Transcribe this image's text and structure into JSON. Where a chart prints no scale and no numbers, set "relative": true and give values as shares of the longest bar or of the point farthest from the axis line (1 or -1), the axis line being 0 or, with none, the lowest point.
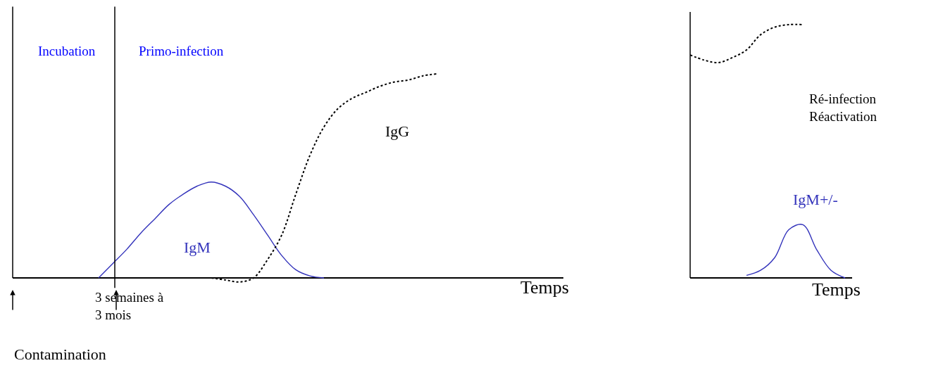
{
  "chart_data": [
    {
      "type": "line",
      "relative": true,
      "legend": false,
      "xlabel": "Temps",
      "categories": [
        null,
        null,
        null,
        null,
        null,
        null,
        null,
        null,
        null,
        null,
        null,
        null,
        null,
        null,
        null,
        null,
        null,
        null,
        null,
        null,
        null,
        null,
        null,
        null,
        null,
        null,
        null,
        null,
        null,
        null,
        null,
        null,
        null,
        null,
        null,
        null,
        null,
        null,
        null,
        null
      ],
      "series": [
        {
          "name": "IgM",
          "color": "#3333bb",
          "line_style": "solid",
          "values": [
            null,
            null,
            null,
            null,
            null,
            null,
            0,
            0.07,
            0.14,
            0.22,
            0.29,
            0.36,
            0.41,
            0.45,
            0.47,
            0.45,
            0.4,
            0.31,
            0.21,
            0.11,
            0.04,
            0.01,
            0,
            null,
            null,
            null,
            null,
            null,
            null,
            null,
            null,
            null,
            null,
            null,
            null,
            null,
            null,
            null,
            null,
            null
          ]
        },
        {
          "name": "IgG",
          "color": "#000000",
          "line_style": "dotted",
          "values": [
            null,
            null,
            null,
            null,
            null,
            null,
            null,
            null,
            null,
            null,
            null,
            null,
            null,
            null,
            0,
            -0.01,
            -0.02,
            0,
            0.09,
            0.21,
            0.41,
            0.6,
            0.74,
            0.83,
            0.88,
            0.91,
            0.94,
            0.96,
            0.97,
            0.99,
            1,
            null,
            null,
            null,
            null,
            null,
            null,
            null,
            null,
            null
          ]
        }
      ],
      "annotations": [
        "Incubation",
        "Primo-infection",
        "3 semaines à\n3 mois",
        "Contamination"
      ]
    },
    {
      "type": "line",
      "relative": true,
      "legend": false,
      "xlabel": "Temps",
      "categories": [
        null,
        null,
        null,
        null,
        null,
        null,
        null,
        null,
        null,
        null,
        null,
        null
      ],
      "series": [
        {
          "color": "#000000",
          "line_style": "dotted",
          "values": [
            0.88,
            0.86,
            0.85,
            0.87,
            0.9,
            0.96,
            0.99,
            1,
            1,
            null,
            null,
            null
          ]
        },
        {
          "name": "IgM+/-",
          "color": "#3333bb",
          "line_style": "solid",
          "values": [
            null,
            null,
            null,
            null,
            0.01,
            0.03,
            0.08,
            0.19,
            0.21,
            0.11,
            0.03,
            0
          ]
        }
      ],
      "annotations": [
        "Ré-infection\nRéactivation"
      ]
    }
  ]
}
